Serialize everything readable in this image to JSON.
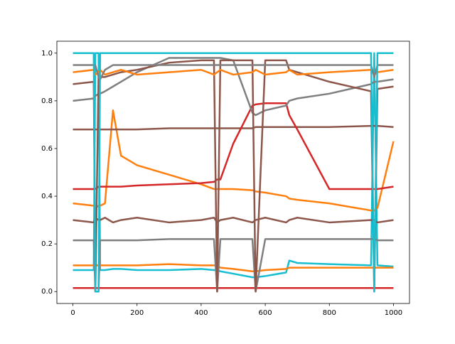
{
  "chart_data": {
    "type": "line",
    "x": [
      0,
      65,
      70,
      80,
      85,
      100,
      125,
      150,
      200,
      300,
      400,
      440,
      450,
      460,
      500,
      560,
      570,
      600,
      665,
      675,
      700,
      800,
      930,
      940,
      950,
      1000
    ],
    "series": [
      {
        "color": "#d62728",
        "values": [
          0.015,
          0.015,
          0.015,
          0.015,
          0.015,
          0.015,
          0.015,
          0.015,
          0.015,
          0.015,
          0.015,
          0.015,
          0.015,
          0.015,
          0.015,
          0.015,
          0.015,
          0.015,
          0.015,
          0.015,
          0.015,
          0.015,
          0.015,
          0.015,
          0.015,
          0.015
        ]
      },
      {
        "color": "#17becf",
        "values": [
          0.09,
          0.09,
          1.0,
          1.0,
          0.09,
          0.09,
          0.095,
          0.095,
          0.09,
          0.09,
          0.095,
          0.09,
          0.09,
          0.085,
          0.075,
          0.06,
          0.06,
          0.065,
          0.08,
          0.13,
          0.12,
          0.115,
          0.11,
          1.0,
          0.11,
          0.105
        ]
      },
      {
        "color": "#ff7f0e",
        "values": [
          0.11,
          0.11,
          0.11,
          0.11,
          0.11,
          0.11,
          0.11,
          0.11,
          0.11,
          0.115,
          0.11,
          0.11,
          0.11,
          0.1,
          0.095,
          0.085,
          0.085,
          0.09,
          0.095,
          0.1,
          0.1,
          0.1,
          0.1,
          0.1,
          0.1,
          0.1
        ]
      },
      {
        "color": "#ff7f0e",
        "values": [
          0.37,
          0.36,
          0.35,
          0.36,
          0.36,
          0.37,
          0.76,
          0.57,
          0.53,
          0.49,
          0.45,
          0.43,
          0.43,
          0.43,
          0.43,
          0.425,
          0.42,
          0.415,
          0.4,
          0.39,
          0.385,
          0.37,
          0.34,
          0.34,
          0.35,
          0.63
        ]
      },
      {
        "color": "#8c564b",
        "values": [
          0.68,
          0.68,
          0.68,
          0.68,
          0.68,
          0.68,
          0.68,
          0.68,
          0.68,
          0.685,
          0.685,
          0.685,
          0.685,
          0.685,
          0.685,
          0.685,
          0.69,
          0.69,
          0.69,
          0.69,
          0.69,
          0.69,
          0.695,
          0.695,
          0.695,
          0.69
        ]
      },
      {
        "color": "#7f7f7f",
        "values": [
          0.215,
          0.215,
          0.0,
          0.0,
          0.215,
          0.215,
          0.215,
          0.215,
          0.215,
          0.22,
          0.22,
          0.22,
          0.0,
          0.22,
          0.22,
          0.22,
          0.0,
          0.22,
          0.22,
          0.22,
          0.22,
          0.22,
          0.22,
          0.22,
          0.215,
          0.215
        ]
      },
      {
        "color": "#8c564b",
        "values": [
          0.3,
          0.29,
          0.31,
          0.3,
          0.3,
          0.31,
          0.29,
          0.3,
          0.31,
          0.29,
          0.3,
          0.31,
          0.29,
          0.3,
          0.31,
          0.29,
          0.3,
          0.31,
          0.29,
          0.3,
          0.31,
          0.29,
          0.3,
          0.3,
          0.29,
          0.3
        ]
      },
      {
        "color": "#d62728",
        "values": [
          0.43,
          0.43,
          0.43,
          0.44,
          0.44,
          0.44,
          0.44,
          0.44,
          0.445,
          0.45,
          0.455,
          0.46,
          0.47,
          0.47,
          0.62,
          0.78,
          0.785,
          0.79,
          0.79,
          0.74,
          0.68,
          0.43,
          0.43,
          0.43,
          0.43,
          0.44
        ]
      },
      {
        "color": "#7f7f7f",
        "values": [
          0.8,
          0.81,
          0.82,
          0.83,
          0.83,
          0.84,
          0.86,
          0.88,
          0.92,
          0.98,
          0.98,
          0.98,
          0.98,
          0.98,
          0.97,
          0.75,
          0.74,
          0.76,
          0.78,
          0.8,
          0.81,
          0.83,
          0.87,
          0.88,
          0.88,
          0.89
        ]
      },
      {
        "color": "#8c564b",
        "values": [
          0.87,
          0.88,
          0.0,
          0.9,
          0.9,
          0.9,
          0.91,
          0.92,
          0.93,
          0.96,
          0.97,
          0.97,
          0.0,
          0.97,
          0.97,
          0.97,
          0.0,
          0.97,
          0.97,
          0.93,
          0.92,
          0.88,
          0.84,
          0.0,
          0.85,
          0.86
        ]
      },
      {
        "color": "#ff7f0e",
        "values": [
          0.92,
          0.93,
          0.91,
          0.92,
          0.93,
          0.91,
          0.92,
          0.93,
          0.91,
          0.92,
          0.93,
          0.91,
          0.92,
          0.93,
          0.91,
          0.92,
          0.93,
          0.91,
          0.92,
          0.93,
          0.91,
          0.92,
          0.93,
          0.91,
          0.92,
          0.93
        ]
      },
      {
        "color": "#7f7f7f",
        "values": [
          0.95,
          0.95,
          0.95,
          0.9,
          0.89,
          0.93,
          0.95,
          0.95,
          0.95,
          0.95,
          0.95,
          0.95,
          0.95,
          0.95,
          0.95,
          0.95,
          0.95,
          0.95,
          0.95,
          0.95,
          0.95,
          0.95,
          0.95,
          0.9,
          0.95,
          0.95
        ]
      },
      {
        "color": "#17becf",
        "values": [
          1.0,
          1.0,
          0.0,
          0.0,
          1.0,
          1.0,
          1.0,
          1.0,
          1.0,
          1.0,
          1.0,
          1.0,
          1.0,
          1.0,
          1.0,
          1.0,
          1.0,
          1.0,
          1.0,
          1.0,
          1.0,
          1.0,
          1.0,
          0.0,
          1.0,
          1.0
        ]
      }
    ],
    "xlim": [
      -50,
      1050
    ],
    "ylim": [
      -0.05,
      1.05
    ],
    "xticks": [
      0,
      200,
      400,
      600,
      800,
      1000
    ],
    "yticks": [
      {
        "value": 0,
        "label": "0.0"
      },
      0.2,
      0.4,
      0.6,
      0.8,
      {
        "value": 1,
        "label": "1.0"
      }
    ]
  }
}
